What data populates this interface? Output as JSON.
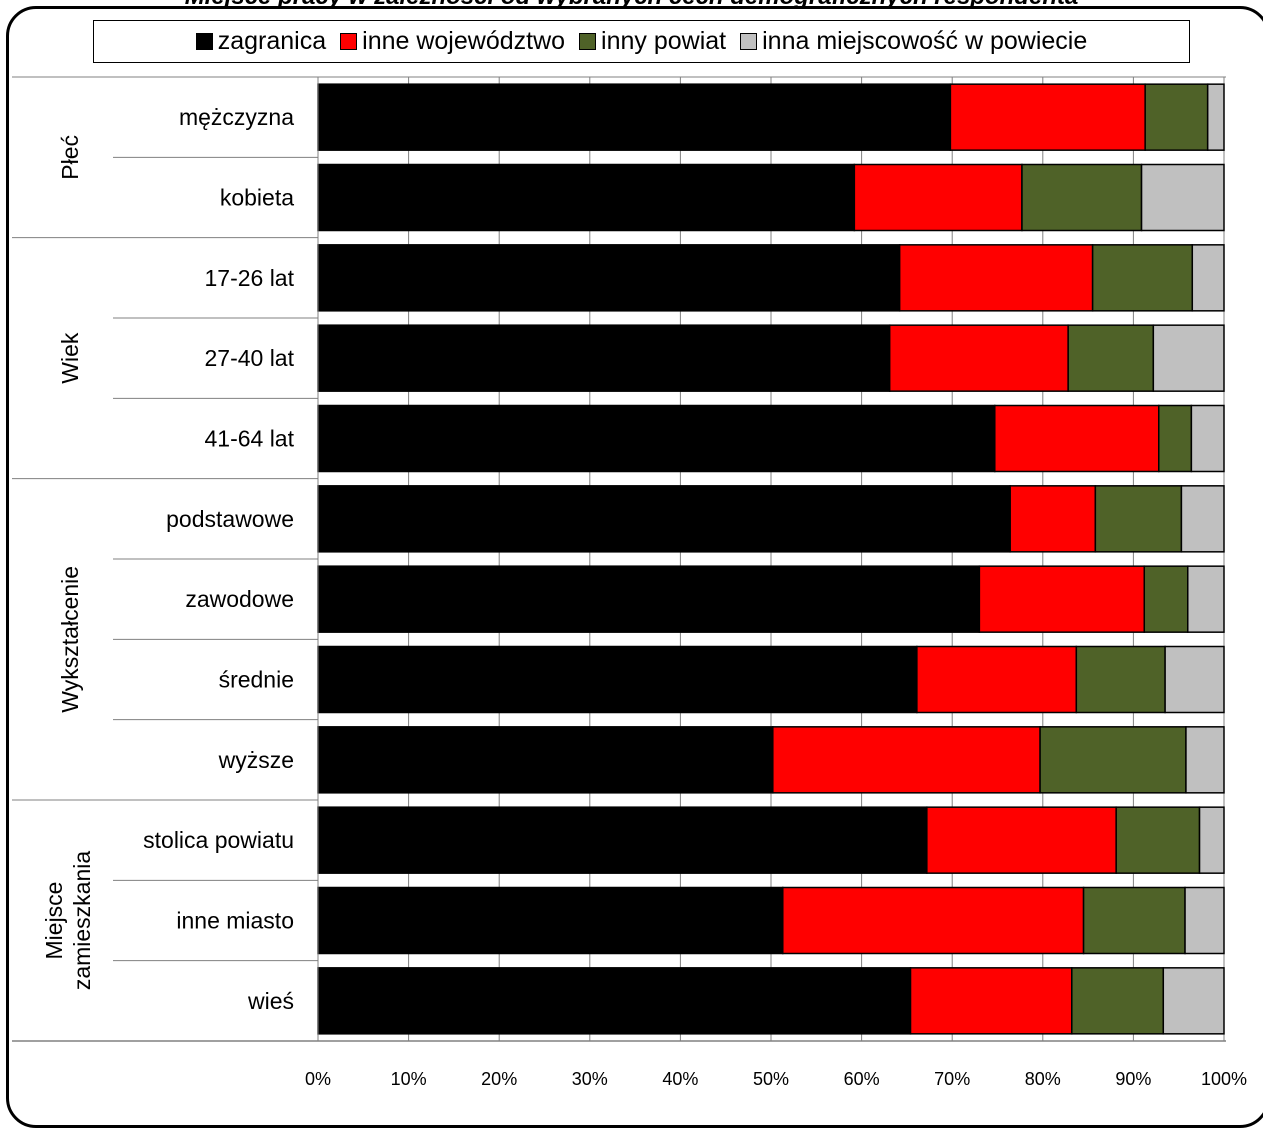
{
  "title": "Miejsce pracy w zależności od wybranych cech demograficznych respondenta",
  "colors": {
    "zagranica": "#000000",
    "inne_wojewodztwo": "#ff0000",
    "inny_powiat": "#4f6228",
    "inna_miejscowosc": "#c0c0c0"
  },
  "legend": [
    {
      "label": "zagranica",
      "color": "#000000"
    },
    {
      "label": "inne województwo",
      "color": "#ff0000"
    },
    {
      "label": "inny powiat",
      "color": "#4f6228"
    },
    {
      "label": "inna miejscowość w powiecie",
      "color": "#c0c0c0"
    }
  ],
  "chart_data": {
    "type": "bar",
    "orientation": "horizontal",
    "stacked": "percent",
    "xlim": [
      0,
      100
    ],
    "xticks": [
      "0%",
      "10%",
      "20%",
      "30%",
      "40%",
      "50%",
      "60%",
      "70%",
      "80%",
      "90%",
      "100%"
    ],
    "grid": "vertical",
    "legend_position": "top",
    "groups": [
      {
        "name": "Płeć",
        "categories": [
          "mężczyzna",
          "kobieta"
        ]
      },
      {
        "name": "Wiek",
        "categories": [
          "17-26 lat",
          "27-40 lat",
          "41-64 lat"
        ]
      },
      {
        "name": "Wykształcenie",
        "categories": [
          "podstawowe",
          "zawodowe",
          "średnie",
          "wyższe"
        ]
      },
      {
        "name": "Miejsce zamieszkania",
        "name_lines": [
          "Miejsce",
          "zamieszkania"
        ],
        "categories": [
          "stolica powiatu",
          "inne miasto",
          "wieś"
        ]
      }
    ],
    "categories": [
      "mężczyzna",
      "kobieta",
      "17-26 lat",
      "27-40 lat",
      "41-64 lat",
      "podstawowe",
      "zawodowe",
      "średnie",
      "wyższe",
      "stolica powiatu",
      "inne miasto",
      "wieś"
    ],
    "series": [
      {
        "name": "zagranica",
        "color": "#000000",
        "values": [
          69.8,
          59.2,
          64.2,
          63.1,
          74.7,
          76.4,
          73.0,
          66.1,
          50.2,
          67.2,
          51.3,
          65.4
        ]
      },
      {
        "name": "inne województwo",
        "color": "#ff0000",
        "values": [
          21.5,
          18.5,
          21.3,
          19.7,
          18.1,
          9.4,
          18.2,
          17.6,
          29.5,
          20.9,
          33.2,
          17.8
        ]
      },
      {
        "name": "inny powiat",
        "color": "#4f6228",
        "values": [
          6.9,
          13.2,
          11.0,
          9.4,
          3.6,
          9.5,
          4.8,
          9.8,
          16.1,
          9.2,
          11.2,
          10.1
        ]
      },
      {
        "name": "inna miejscowość w powiecie",
        "color": "#c0c0c0",
        "values": [
          1.8,
          9.1,
          3.5,
          7.8,
          3.6,
          4.7,
          4.0,
          6.5,
          4.2,
          2.7,
          4.3,
          6.7
        ]
      }
    ]
  }
}
